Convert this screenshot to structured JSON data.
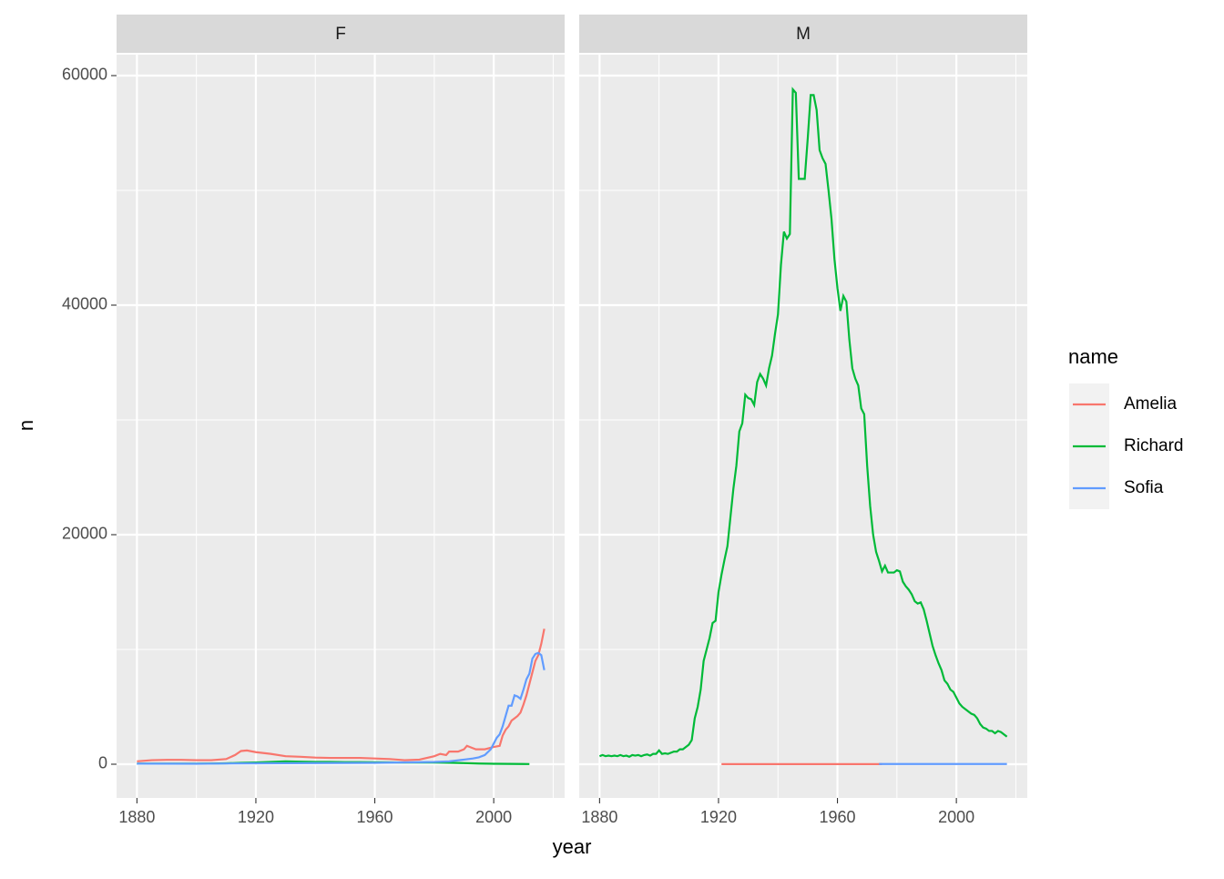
{
  "chart_data": {
    "type": "line",
    "x_label": "year",
    "y_label": "n",
    "legend_title": "name",
    "legend_position": "right",
    "grid": true,
    "xlim": [
      1873.15,
      2023.85
    ],
    "ylim": [
      -2937,
      61825
    ],
    "xticks": [
      1880,
      1920,
      1960,
      2000
    ],
    "yticks": [
      0,
      20000,
      40000,
      60000
    ],
    "xminor": [
      1900,
      1940,
      1980,
      2020
    ],
    "yminor": [
      10000,
      30000,
      50000
    ],
    "facets": [
      {
        "label": "F",
        "series": [
          {
            "name": "Amelia",
            "color": "#F8766D",
            "x": [
              1880,
              1885,
              1890,
              1895,
              1900,
              1905,
              1910,
              1913,
              1915,
              1917,
              1920,
              1925,
              1930,
              1935,
              1940,
              1945,
              1950,
              1955,
              1960,
              1965,
              1970,
              1975,
              1980,
              1982,
              1984,
              1985,
              1988,
              1990,
              1991,
              1992,
              1994,
              1997,
              2000,
              2002,
              2003,
              2004,
              2005,
              2006,
              2007,
              2008,
              2009,
              2010,
              2011,
              2012,
              2013,
              2014,
              2015,
              2016,
              2017
            ],
            "values": [
              250,
              350,
              380,
              380,
              350,
              350,
              450,
              800,
              1150,
              1200,
              1050,
              900,
              700,
              650,
              580,
              550,
              550,
              550,
              500,
              450,
              350,
              400,
              700,
              900,
              800,
              1100,
              1100,
              1300,
              1600,
              1500,
              1300,
              1300,
              1500,
              1600,
              2500,
              3000,
              3300,
              3800,
              4000,
              4200,
              4500,
              5200,
              6000,
              7000,
              8000,
              9000,
              9500,
              10500,
              11800
            ]
          },
          {
            "name": "Richard",
            "color": "#00BA38",
            "x": [
              1880,
              1885,
              1890,
              1895,
              1900,
              1905,
              1910,
              1915,
              1920,
              1925,
              1930,
              1935,
              1940,
              1945,
              1950,
              1955,
              1960,
              1965,
              1970,
              1975,
              1980,
              1985,
              1990,
              1995,
              2000,
              2005,
              2010,
              2012
            ],
            "values": [
              50,
              50,
              50,
              50,
              50,
              60,
              80,
              120,
              150,
              200,
              250,
              220,
              200,
              200,
              180,
              180,
              170,
              160,
              150,
              150,
              150,
              130,
              100,
              60,
              40,
              30,
              20,
              15
            ]
          },
          {
            "name": "Sofia",
            "color": "#619CFF",
            "x": [
              1880,
              1900,
              1920,
              1940,
              1960,
              1980,
              1985,
              1990,
              1993,
              1995,
              1997,
              1999,
              2000,
              2001,
              2002,
              2003,
              2004,
              2005,
              2006,
              2007,
              2008,
              2009,
              2010,
              2011,
              2012,
              2013,
              2014,
              2015,
              2016,
              2017
            ],
            "values": [
              50,
              40,
              80,
              100,
              120,
              200,
              250,
              400,
              500,
              600,
              800,
              1300,
              1800,
              2300,
              2600,
              3300,
              4200,
              5100,
              5100,
              6000,
              5900,
              5700,
              6500,
              7400,
              7900,
              9200,
              9600,
              9700,
              9500,
              8200
            ]
          }
        ]
      },
      {
        "label": "M",
        "series": [
          {
            "name": "Amelia",
            "color": "#F8766D",
            "x": [
              1921,
              1930,
              1940,
              1950,
              1960,
              1970,
              1975
            ],
            "values": [
              10,
              10,
              10,
              10,
              10,
              10,
              10
            ]
          },
          {
            "name": "Richard",
            "color": "#00BA38",
            "x": [
              1880,
              1881,
              1882,
              1883,
              1884,
              1885,
              1886,
              1887,
              1888,
              1889,
              1890,
              1891,
              1892,
              1893,
              1894,
              1895,
              1896,
              1897,
              1898,
              1899,
              1900,
              1901,
              1902,
              1903,
              1904,
              1905,
              1906,
              1907,
              1908,
              1909,
              1910,
              1911,
              1912,
              1913,
              1914,
              1915,
              1916,
              1917,
              1918,
              1919,
              1920,
              1921,
              1922,
              1923,
              1924,
              1925,
              1926,
              1927,
              1928,
              1929,
              1930,
              1931,
              1932,
              1933,
              1934,
              1935,
              1936,
              1937,
              1938,
              1939,
              1940,
              1941,
              1942,
              1943,
              1944,
              1945,
              1946,
              1947,
              1948,
              1949,
              1950,
              1951,
              1952,
              1953,
              1954,
              1955,
              1956,
              1957,
              1958,
              1959,
              1960,
              1961,
              1962,
              1963,
              1964,
              1965,
              1966,
              1967,
              1968,
              1969,
              1970,
              1971,
              1972,
              1973,
              1974,
              1975,
              1976,
              1977,
              1978,
              1979,
              1980,
              1981,
              1982,
              1983,
              1984,
              1985,
              1986,
              1987,
              1988,
              1989,
              1990,
              1991,
              1992,
              1993,
              1994,
              1995,
              1996,
              1997,
              1998,
              1999,
              2000,
              2001,
              2002,
              2003,
              2004,
              2005,
              2006,
              2007,
              2008,
              2009,
              2010,
              2011,
              2012,
              2013,
              2014,
              2015,
              2016,
              2017
            ],
            "values": [
              700,
              800,
              700,
              750,
              700,
              750,
              700,
              800,
              700,
              750,
              650,
              800,
              750,
              800,
              700,
              800,
              850,
              750,
              900,
              900,
              1200,
              900,
              950,
              900,
              1000,
              1100,
              1100,
              1300,
              1300,
              1500,
              1700,
              2100,
              4000,
              5000,
              6500,
              9000,
              10000,
              11000,
              12300,
              12500,
              15000,
              16500,
              17800,
              19000,
              21500,
              24000,
              26000,
              29000,
              29700,
              32200,
              31900,
              31800,
              31300,
              33300,
              34000,
              33600,
              33000,
              34500,
              35600,
              37500,
              39200,
              43500,
              46400,
              45800,
              46200,
              58800,
              58500,
              51000,
              51000,
              51000,
              54500,
              58300,
              58300,
              57000,
              53500,
              52800,
              52300,
              50000,
              47500,
              44000,
              41500,
              39500,
              40800,
              40300,
              37000,
              34500,
              33600,
              33000,
              31000,
              30500,
              26000,
              22500,
              20000,
              18500,
              17700,
              16800,
              17300,
              16700,
              16700,
              16700,
              16900,
              16800,
              15900,
              15500,
              15200,
              14800,
              14200,
              14000,
              14100,
              13500,
              12500,
              11400,
              10300,
              9500,
              8800,
              8200,
              7300,
              7000,
              6500,
              6300,
              5800,
              5300,
              5000,
              4800,
              4600,
              4400,
              4300,
              4000,
              3500,
              3200,
              3100,
              2900,
              2900,
              2700,
              2900,
              2800,
              2600,
              2400
            ]
          },
          {
            "name": "Sofia",
            "color": "#619CFF",
            "x": [
              1974,
              1990,
              2000,
              2010,
              2017
            ],
            "values": [
              20,
              20,
              20,
              20,
              20
            ]
          }
        ]
      }
    ]
  }
}
